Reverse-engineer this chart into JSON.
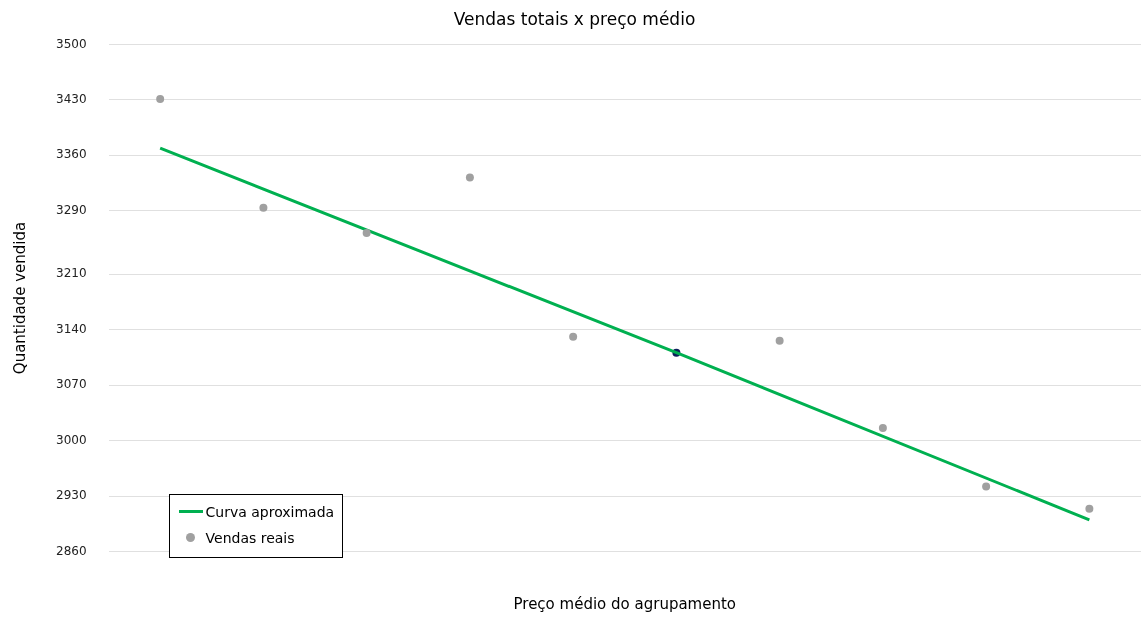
{
  "chart_data": {
    "type": "scatter",
    "title": "Vendas totais x preço médio",
    "xlabel": "Preço médio do agrupamento",
    "ylabel": "Quantidade vendida",
    "categories": [
      null,
      null,
      null,
      null,
      null,
      null,
      null,
      null,
      null,
      null
    ],
    "ylim": [
      2860,
      3500
    ],
    "yticks": [
      2860,
      2930,
      3000,
      3070,
      3140,
      3210,
      3290,
      3360,
      3430,
      3500
    ],
    "grid": "y",
    "legend": "bottom left",
    "series": [
      {
        "name": "Curva aproximada",
        "type": "line",
        "color": "#00b050",
        "marker": "none",
        "values": [
          3369,
          null,
          null,
          null,
          null,
          3111,
          null,
          null,
          null,
          2900
        ]
      },
      {
        "name": "Vendas reais",
        "type": "scatter",
        "color": "#a0a0a0",
        "marker": "circle",
        "values": [
          3431,
          3294,
          3262,
          3332,
          3131,
          null,
          3126,
          3016,
          2942,
          2914
        ]
      },
      {
        "type": "scatter",
        "color": "#0d1f5c",
        "marker": "circle",
        "values": [
          null,
          null,
          null,
          null,
          null,
          3111,
          null,
          null,
          null,
          null
        ]
      }
    ]
  }
}
